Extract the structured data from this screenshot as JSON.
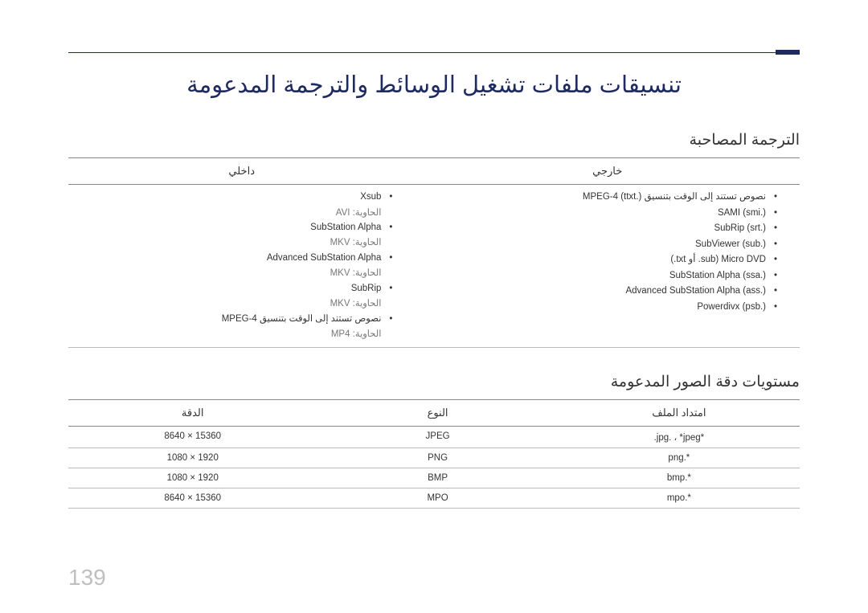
{
  "page": {
    "title": "تنسيقات ملفات تشغيل الوسائط والترجمة المدعومة",
    "number": "139"
  },
  "subtitle": {
    "heading": "الترجمة المصاحبة",
    "columns": {
      "external": "خارجي",
      "internal": "داخلي"
    },
    "external": [
      {
        "text": "نصوص تستند إلى الوقت بتنسيق MPEG-4 (ttxt.)"
      },
      {
        "text": "SAMI (smi.)"
      },
      {
        "text": "SubRip (srt.)"
      },
      {
        "text": "SubViewer (sub.)"
      },
      {
        "text": "Micro DVD (sub. أو txt.)"
      },
      {
        "text": "SubStation Alpha (ssa.)"
      },
      {
        "text": "Advanced SubStation Alpha (ass.)"
      },
      {
        "text": "Powerdivx (psb.)"
      }
    ],
    "internal": [
      {
        "text": "Xsub",
        "note": "الحاوية: AVI"
      },
      {
        "text": "SubStation Alpha",
        "note": "الحاوية: MKV"
      },
      {
        "text": "Advanced SubStation Alpha",
        "note": "الحاوية: MKV"
      },
      {
        "text": "SubRip",
        "note": "الحاوية: MKV"
      },
      {
        "text": "نصوص تستند إلى الوقت بتنسيق MPEG-4",
        "note": "الحاوية: MP4"
      }
    ]
  },
  "images": {
    "heading": "مستويات دقة الصور المدعومة",
    "columns": {
      "ext": "امتداد الملف",
      "type": "النوع",
      "res": "الدقة"
    },
    "rows": [
      {
        "ext": "*jpg. ، *jpeg.",
        "type": "JPEG",
        "res": "8640 × 15360"
      },
      {
        "ext": "*.png",
        "type": "PNG",
        "res": "1080 × 1920"
      },
      {
        "ext": "*.bmp",
        "type": "BMP",
        "res": "1080 × 1920"
      },
      {
        "ext": "*.mpo",
        "type": "MPO",
        "res": "8640 × 15360"
      }
    ]
  }
}
